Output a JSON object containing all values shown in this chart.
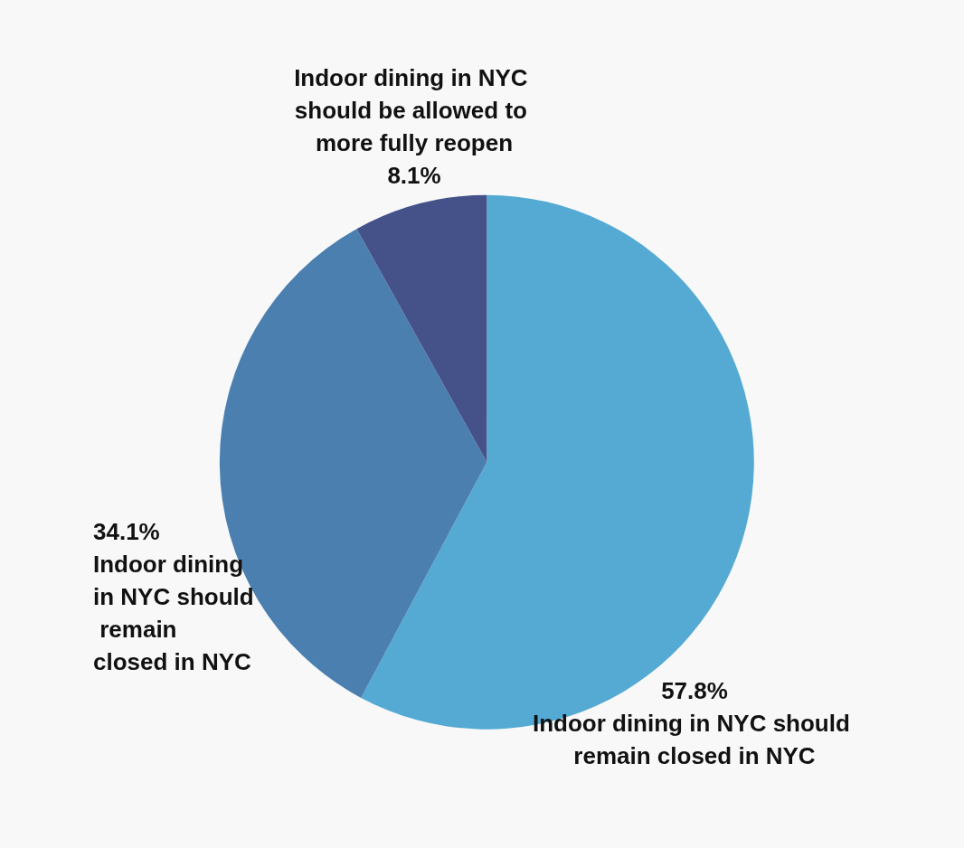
{
  "chart_data": {
    "type": "pie",
    "categories": [
      "Indoor dining in NYC should remain closed in NYC",
      "Indoor dining in NYC should remain closed in NYC",
      "Indoor dining in NYC should be allowed to more fully reopen"
    ],
    "values": [
      57.8,
      34.1,
      8.1
    ],
    "value_labels": [
      "57.8%",
      "34.1%",
      "8.1%"
    ],
    "colors": [
      "#54aad3",
      "#4a7fb0",
      "#45528a"
    ],
    "legend": false
  }
}
